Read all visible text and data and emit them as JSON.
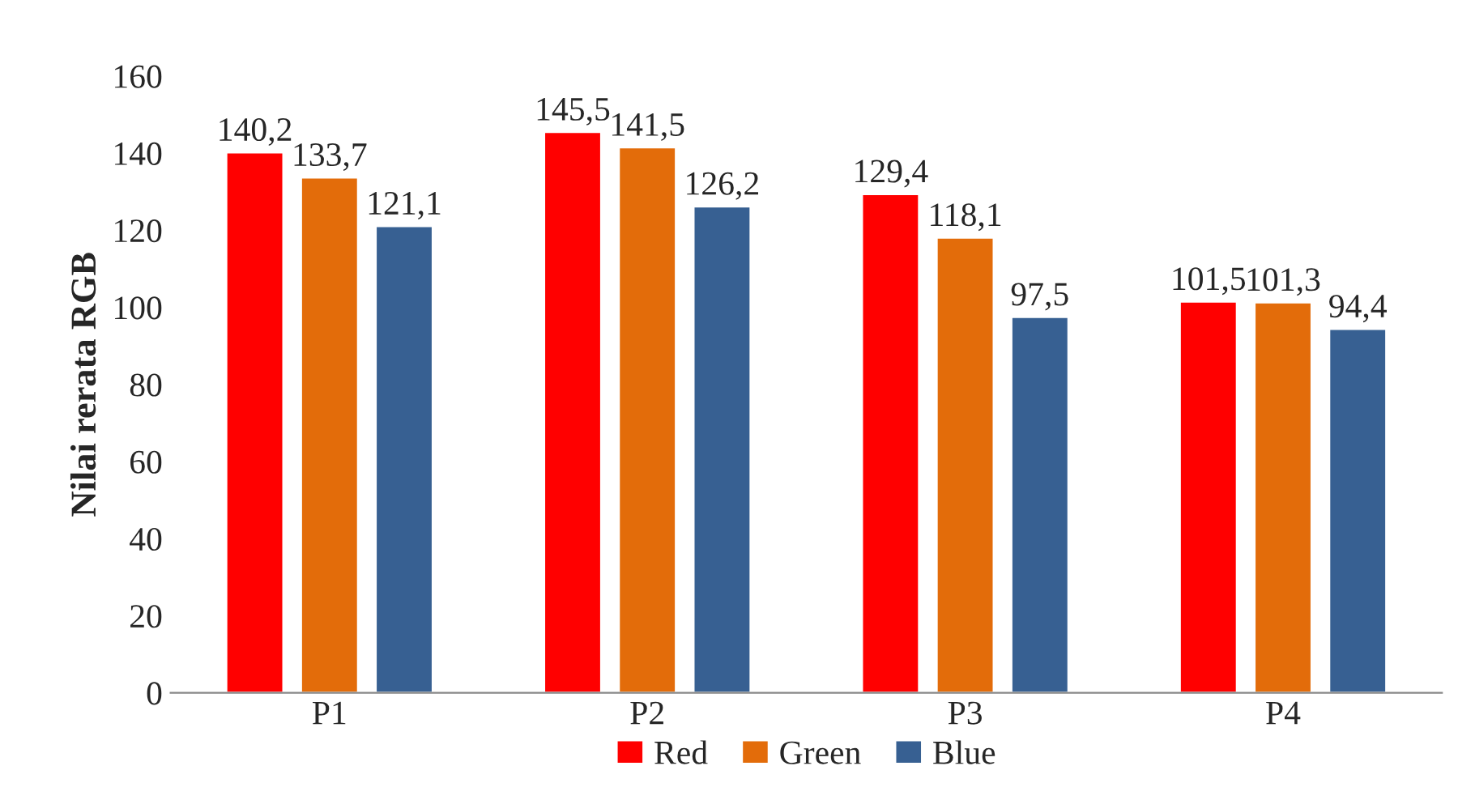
{
  "chart_data": {
    "type": "bar",
    "ylabel": "Nilai rerata RGB",
    "categories": [
      "P1",
      "P2",
      "P3",
      "P4"
    ],
    "series": [
      {
        "name": "Red",
        "color": "#ff0000",
        "values": [
          140.2,
          145.5,
          129.4,
          101.5
        ],
        "value_labels": [
          "140,2",
          "145,5",
          "129,4",
          "101,5"
        ]
      },
      {
        "name": "Green",
        "color": "#e36c0a",
        "values": [
          133.7,
          141.5,
          118.1,
          101.3
        ],
        "value_labels": [
          "133,7",
          "141,5",
          "118,1",
          "101,3"
        ]
      },
      {
        "name": "Blue",
        "color": "#376092",
        "values": [
          121.1,
          126.2,
          97.5,
          94.4
        ],
        "value_labels": [
          "121,1",
          "126,2",
          "97,5",
          "94,4"
        ]
      }
    ],
    "ylim": [
      0,
      160
    ],
    "yticks": [
      0,
      20,
      40,
      60,
      80,
      100,
      120,
      140,
      160
    ],
    "grid": false,
    "legend": "bottom"
  }
}
